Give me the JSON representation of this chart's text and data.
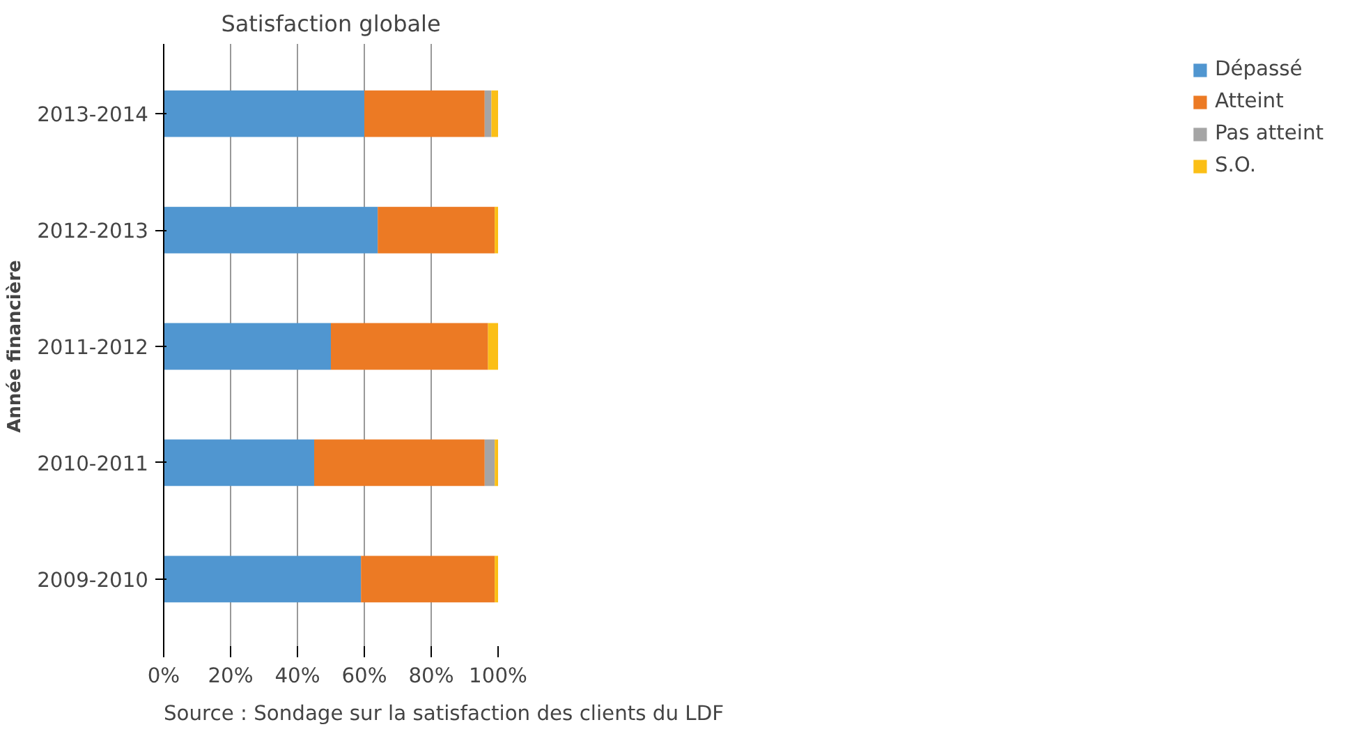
{
  "chart_data": {
    "type": "bar",
    "orientation": "horizontal",
    "stacked": true,
    "title": "Satisfaction globale",
    "ylabel": "Année financière",
    "categories": [
      "2013-2014",
      "2012-2013",
      "2011-2012",
      "2010-2011",
      "2009-2010"
    ],
    "series": [
      {
        "name": "Dépassé",
        "color": "#5096d0",
        "values": [
          60,
          64,
          50,
          45,
          59
        ]
      },
      {
        "name": "Atteint",
        "color": "#ec7a24",
        "values": [
          36,
          35,
          47,
          51,
          40
        ]
      },
      {
        "name": "Pas atteint",
        "color": "#a5a5a5",
        "values": [
          2,
          0,
          0,
          3,
          0
        ]
      },
      {
        "name": "S.O.",
        "color": "#fbbf16",
        "values": [
          2,
          1,
          3,
          1,
          1
        ]
      }
    ],
    "xlim": [
      0,
      100
    ],
    "xticks": [
      {
        "value": 0,
        "label": "0%"
      },
      {
        "value": 20,
        "label": "20%"
      },
      {
        "value": 40,
        "label": "40%"
      },
      {
        "value": 60,
        "label": "60%"
      },
      {
        "value": 80,
        "label": "80%"
      },
      {
        "value": 100,
        "label": "100%"
      }
    ],
    "grid": "x",
    "legend": "right",
    "annotations": [
      "Source : Sondage sur la satisfaction des clients du LDF"
    ]
  }
}
